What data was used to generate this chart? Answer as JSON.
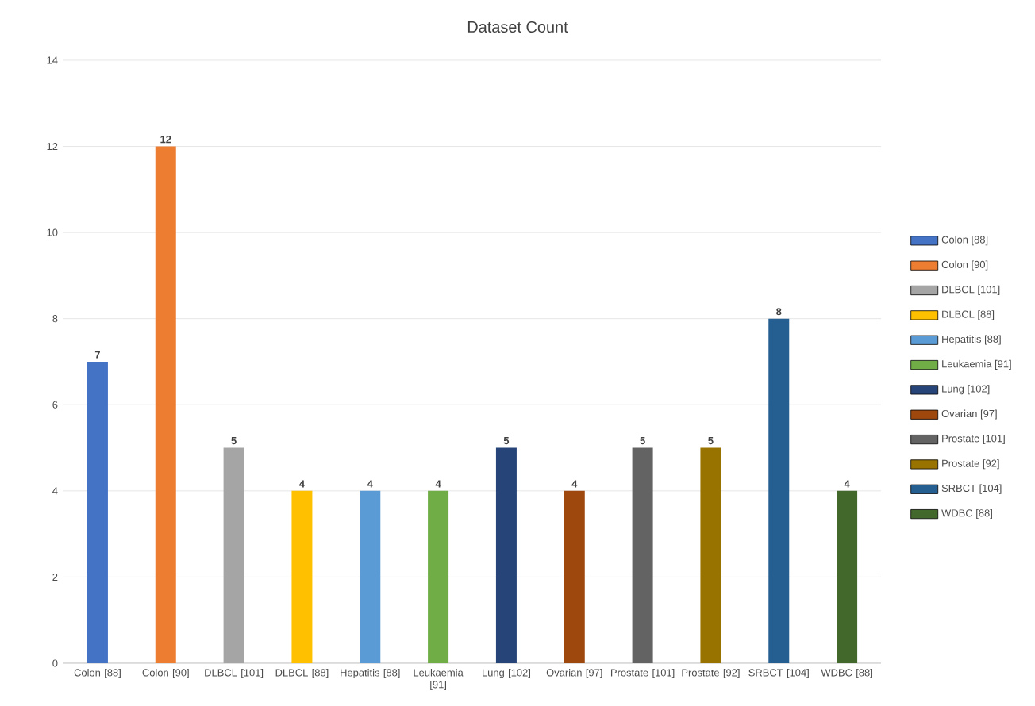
{
  "chart_data": {
    "type": "bar",
    "title": "Dataset Count",
    "categories": [
      "Colon [88]",
      "Colon [90]",
      "DLBCL [101]",
      "DLBCL [88]",
      "Hepatitis [88]",
      "Leukaemia [91]",
      "Lung [102]",
      "Ovarian [97]",
      "Prostate [101]",
      "Prostate [92]",
      "SRBCT [104]",
      "WDBC [88]"
    ],
    "series": [
      {
        "name": "Colon [88]",
        "color": "#4472c4",
        "values": [
          7,
          null,
          null,
          null,
          null,
          null,
          null,
          null,
          null,
          null,
          null,
          null
        ]
      },
      {
        "name": "Colon [90]",
        "color": "#ed7d31",
        "values": [
          null,
          12,
          null,
          null,
          null,
          null,
          null,
          null,
          null,
          null,
          null,
          null
        ]
      },
      {
        "name": "DLBCL [101]",
        "color": "#a5a5a5",
        "values": [
          null,
          null,
          5,
          null,
          null,
          null,
          null,
          null,
          null,
          null,
          null,
          null
        ]
      },
      {
        "name": "DLBCL [88]",
        "color": "#ffc000",
        "values": [
          null,
          null,
          null,
          4,
          null,
          null,
          null,
          null,
          null,
          null,
          null,
          null
        ]
      },
      {
        "name": "Hepatitis [88]",
        "color": "#5b9bd5",
        "values": [
          null,
          null,
          null,
          null,
          4,
          null,
          null,
          null,
          null,
          null,
          null,
          null
        ]
      },
      {
        "name": "Leukaemia [91]",
        "color": "#70ad47",
        "values": [
          null,
          null,
          null,
          null,
          null,
          4,
          null,
          null,
          null,
          null,
          null,
          null
        ]
      },
      {
        "name": "Lung [102]",
        "color": "#264478",
        "values": [
          null,
          null,
          null,
          null,
          null,
          null,
          5,
          null,
          null,
          null,
          null,
          null
        ]
      },
      {
        "name": "Ovarian [97]",
        "color": "#9e480e",
        "values": [
          null,
          null,
          null,
          null,
          null,
          null,
          null,
          4,
          null,
          null,
          null,
          null
        ]
      },
      {
        "name": "Prostate [101]",
        "color": "#636363",
        "values": [
          null,
          null,
          null,
          null,
          null,
          null,
          null,
          null,
          5,
          null,
          null,
          null
        ]
      },
      {
        "name": "Prostate [92]",
        "color": "#997300",
        "values": [
          null,
          null,
          null,
          null,
          null,
          null,
          null,
          null,
          null,
          5,
          null,
          null
        ]
      },
      {
        "name": "SRBCT [104]",
        "color": "#255e91",
        "values": [
          null,
          null,
          null,
          null,
          null,
          null,
          null,
          null,
          null,
          null,
          8,
          null
        ]
      },
      {
        "name": "WDBC [88]",
        "color": "#43682b",
        "values": [
          null,
          null,
          null,
          null,
          null,
          null,
          null,
          null,
          null,
          null,
          null,
          4
        ]
      }
    ],
    "ylim": [
      0,
      14
    ],
    "yticks": [
      0,
      2,
      4,
      6,
      8,
      10,
      12,
      14
    ],
    "grid": "y",
    "legend": "right",
    "data_labels": true
  }
}
